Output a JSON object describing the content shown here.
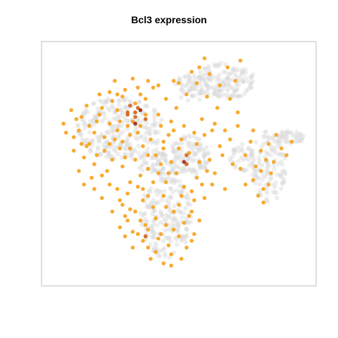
{
  "chart_data": {
    "type": "scatter",
    "title": "Bcl3 expression",
    "xlabel": "",
    "ylabel": "",
    "grid": false,
    "legend": "none",
    "colors": {
      "background_cells": "#d9d9d9",
      "low_expression": "#f7a21b",
      "high_expression": "#9e2a1a",
      "panel_border": "#bfbfbf"
    },
    "expressing_cells": [
      [
        0.6,
        0.96,
        1
      ],
      [
        0.42,
        0.84,
        1
      ],
      [
        0.48,
        0.86,
        1
      ],
      [
        0.3,
        0.72,
        2
      ],
      [
        0.33,
        0.7,
        2
      ],
      [
        0.44,
        0.56,
        1
      ],
      [
        0.35,
        0.66,
        1
      ],
      [
        0.31,
        0.62,
        1
      ],
      [
        0.26,
        0.64,
        1
      ],
      [
        0.17,
        0.63,
        1
      ],
      [
        0.12,
        0.58,
        1
      ],
      [
        0.05,
        0.67,
        1
      ],
      [
        0.1,
        0.69,
        1
      ],
      [
        0.19,
        0.71,
        1
      ],
      [
        0.24,
        0.77,
        1
      ],
      [
        0.28,
        0.79,
        1
      ],
      [
        0.25,
        0.6,
        1
      ],
      [
        0.21,
        0.55,
        1
      ],
      [
        0.13,
        0.52,
        1
      ],
      [
        0.09,
        0.55,
        1
      ],
      [
        0.17,
        0.49,
        1
      ],
      [
        0.22,
        0.46,
        1
      ],
      [
        0.16,
        0.43,
        1
      ],
      [
        0.11,
        0.46,
        1
      ],
      [
        0.28,
        0.48,
        1
      ],
      [
        0.33,
        0.51,
        1
      ],
      [
        0.38,
        0.47,
        1
      ],
      [
        0.41,
        0.53,
        1
      ],
      [
        0.45,
        0.41,
        1
      ],
      [
        0.49,
        0.45,
        1
      ],
      [
        0.52,
        0.39,
        1
      ],
      [
        0.57,
        0.43,
        1
      ],
      [
        0.53,
        0.49,
        2
      ],
      [
        0.58,
        0.5,
        1
      ],
      [
        0.61,
        0.46,
        1
      ],
      [
        0.63,
        0.4,
        1
      ],
      [
        0.68,
        0.38,
        1
      ],
      [
        0.66,
        0.57,
        1
      ],
      [
        0.7,
        0.6,
        1
      ],
      [
        0.76,
        0.53,
        1
      ],
      [
        0.74,
        0.47,
        1
      ],
      [
        0.8,
        0.48,
        1
      ],
      [
        0.84,
        0.51,
        1
      ],
      [
        0.86,
        0.45,
        1
      ],
      [
        0.82,
        0.55,
        1
      ],
      [
        0.9,
        0.56,
        1
      ],
      [
        0.94,
        0.59,
        1
      ],
      [
        0.83,
        0.32,
        1
      ],
      [
        0.81,
        0.35,
        1
      ],
      [
        0.44,
        0.35,
        1
      ],
      [
        0.4,
        0.3,
        1
      ],
      [
        0.36,
        0.33,
        1
      ],
      [
        0.33,
        0.28,
        1
      ],
      [
        0.3,
        0.24,
        1
      ],
      [
        0.27,
        0.21,
        1
      ],
      [
        0.32,
        0.19,
        1
      ],
      [
        0.37,
        0.22,
        1
      ],
      [
        0.41,
        0.25,
        1
      ],
      [
        0.45,
        0.22,
        1
      ],
      [
        0.48,
        0.28,
        1
      ],
      [
        0.52,
        0.23,
        1
      ],
      [
        0.55,
        0.28,
        1
      ],
      [
        0.5,
        0.17,
        1
      ],
      [
        0.46,
        0.13,
        1
      ],
      [
        0.41,
        0.1,
        1
      ],
      [
        0.36,
        0.15,
        1
      ],
      [
        0.39,
        0.07,
        1
      ],
      [
        0.44,
        0.05,
        1
      ],
      [
        0.28,
        0.31,
        1
      ],
      [
        0.24,
        0.28,
        1
      ],
      [
        0.2,
        0.34,
        1
      ],
      [
        0.17,
        0.38,
        1
      ],
      [
        0.26,
        0.38,
        1
      ],
      [
        0.31,
        0.41,
        1
      ],
      [
        0.35,
        0.44,
        1
      ],
      [
        0.42,
        0.45,
        1
      ],
      [
        0.47,
        0.5,
        1
      ],
      [
        0.5,
        0.56,
        1
      ],
      [
        0.46,
        0.62,
        1
      ],
      [
        0.43,
        0.66,
        1
      ],
      [
        0.47,
        0.68,
        1
      ],
      [
        0.39,
        0.6,
        1
      ],
      [
        0.36,
        0.57,
        1
      ],
      [
        0.31,
        0.56,
        1
      ],
      [
        0.28,
        0.59,
        1
      ],
      [
        0.23,
        0.67,
        1
      ],
      [
        0.2,
        0.74,
        1
      ],
      [
        0.26,
        0.73,
        1
      ],
      [
        0.33,
        0.76,
        1
      ],
      [
        0.37,
        0.78,
        1
      ],
      [
        0.34,
        0.83,
        1
      ],
      [
        0.38,
        0.86,
        1
      ],
      [
        0.32,
        0.87,
        1
      ],
      [
        0.25,
        0.86,
        1
      ],
      [
        0.19,
        0.8,
        1
      ],
      [
        0.14,
        0.75,
        1
      ],
      [
        0.08,
        0.73,
        1
      ],
      [
        0.15,
        0.66,
        1
      ],
      [
        0.09,
        0.61,
        1
      ],
      [
        0.53,
        0.8,
        1
      ],
      [
        0.57,
        0.85,
        1
      ],
      [
        0.61,
        0.79,
        1
      ],
      [
        0.65,
        0.74,
        1
      ],
      [
        0.62,
        0.89,
        1
      ],
      [
        0.66,
        0.84,
        1
      ],
      [
        0.7,
        0.78,
        1
      ],
      [
        0.72,
        0.86,
        1
      ],
      [
        0.69,
        0.92,
        1
      ],
      [
        0.74,
        0.95,
        1
      ],
      [
        0.73,
        0.72,
        1
      ],
      [
        0.56,
        0.63,
        1
      ],
      [
        0.59,
        0.69,
        1
      ],
      [
        0.64,
        0.67,
        1
      ],
      [
        0.52,
        0.66,
        1
      ],
      [
        0.49,
        0.74,
        1
      ],
      [
        0.45,
        0.78,
        1
      ],
      [
        0.29,
        0.52,
        1
      ],
      [
        0.14,
        0.57,
        1
      ],
      [
        0.23,
        0.58,
        1
      ],
      [
        0.55,
        0.37,
        1
      ],
      [
        0.6,
        0.34,
        1
      ],
      [
        0.62,
        0.51,
        1
      ],
      [
        0.67,
        0.53,
        1
      ],
      [
        0.71,
        0.49,
        1
      ],
      [
        0.78,
        0.59,
        1
      ],
      [
        0.88,
        0.62,
        1
      ],
      [
        0.92,
        0.53,
        1
      ],
      [
        0.87,
        0.5,
        1
      ],
      [
        0.79,
        0.42,
        1
      ],
      [
        0.76,
        0.4,
        1
      ],
      [
        0.43,
        0.18,
        1
      ],
      [
        0.47,
        0.09,
        1
      ],
      [
        0.53,
        0.12,
        1
      ],
      [
        0.56,
        0.18,
        1
      ],
      [
        0.58,
        0.24,
        1
      ],
      [
        0.38,
        0.12,
        1
      ],
      [
        0.34,
        0.18,
        1
      ],
      [
        0.29,
        0.26,
        1
      ],
      [
        0.36,
        0.38,
        1
      ],
      [
        0.4,
        0.41,
        1
      ],
      [
        0.51,
        0.35,
        1
      ],
      [
        0.56,
        0.33,
        1
      ],
      [
        0.59,
        0.4,
        1
      ],
      [
        0.64,
        0.45,
        1
      ],
      [
        0.27,
        0.68,
        1
      ],
      [
        0.21,
        0.61,
        1
      ],
      [
        0.18,
        0.68,
        1
      ],
      [
        0.12,
        0.7,
        1
      ],
      [
        0.06,
        0.63,
        1
      ],
      [
        0.11,
        0.64,
        1
      ],
      [
        0.29,
        0.82,
        1
      ],
      [
        0.23,
        0.81,
        1
      ],
      [
        0.35,
        0.8,
        1
      ],
      [
        0.4,
        0.83,
        1
      ],
      [
        0.26,
        0.8,
        1
      ],
      [
        0.32,
        0.68,
        1
      ],
      [
        0.37,
        0.71,
        1
      ],
      [
        0.34,
        0.63,
        1
      ],
      [
        0.3,
        0.66,
        1
      ],
      [
        0.27,
        0.56,
        1
      ],
      [
        0.5,
        0.85,
        1
      ],
      [
        0.55,
        0.9,
        1
      ],
      [
        0.58,
        0.92,
        1
      ],
      [
        0.48,
        0.64,
        1
      ],
      [
        0.42,
        0.71,
        1
      ],
      [
        0.44,
        0.59,
        1
      ],
      [
        0.51,
        0.6,
        1
      ],
      [
        0.54,
        0.54,
        1
      ],
      [
        0.57,
        0.58,
        1
      ],
      [
        0.6,
        0.62,
        1
      ],
      [
        0.63,
        0.64,
        1
      ],
      [
        0.68,
        0.64,
        1
      ],
      [
        0.73,
        0.66,
        1
      ],
      [
        0.79,
        0.64,
        1
      ],
      [
        0.85,
        0.58,
        1
      ],
      [
        0.82,
        0.46,
        1
      ],
      [
        0.85,
        0.4,
        1
      ],
      [
        0.83,
        0.38,
        1
      ],
      [
        0.46,
        0.45,
        1
      ],
      [
        0.43,
        0.49,
        1
      ],
      [
        0.38,
        0.53,
        1
      ],
      [
        0.24,
        0.51,
        1
      ],
      [
        0.18,
        0.53,
        1
      ],
      [
        0.15,
        0.58,
        1
      ],
      [
        0.2,
        0.44,
        1
      ],
      [
        0.13,
        0.4,
        1
      ],
      [
        0.23,
        0.4,
        1
      ],
      [
        0.3,
        0.36,
        1
      ],
      [
        0.34,
        0.39,
        1
      ],
      [
        0.38,
        0.35,
        1
      ],
      [
        0.45,
        0.3,
        1
      ],
      [
        0.5,
        0.31,
        1
      ],
      [
        0.54,
        0.26,
        1
      ],
      [
        0.48,
        0.2,
        1
      ],
      [
        0.42,
        0.16,
        1
      ],
      [
        0.38,
        0.2,
        1
      ],
      [
        0.35,
        0.24,
        1
      ],
      [
        0.31,
        0.29,
        1
      ],
      [
        0.27,
        0.33,
        1
      ],
      [
        0.32,
        0.12,
        1
      ],
      [
        0.29,
        0.17,
        1
      ],
      [
        0.47,
        0.04,
        1
      ],
      [
        0.51,
        0.07,
        1
      ],
      [
        0.55,
        0.15,
        1
      ],
      [
        0.33,
        0.72,
        2
      ],
      [
        0.34,
        0.74,
        2
      ],
      [
        0.3,
        0.71,
        2
      ],
      [
        0.52,
        0.5,
        3
      ],
      [
        0.33,
        0.67,
        3
      ],
      [
        0.35,
        0.73,
        3
      ],
      [
        0.37,
        0.69,
        2
      ],
      [
        0.31,
        0.75,
        2
      ],
      [
        0.53,
        0.53,
        2
      ],
      [
        0.37,
        0.17,
        2
      ]
    ]
  }
}
